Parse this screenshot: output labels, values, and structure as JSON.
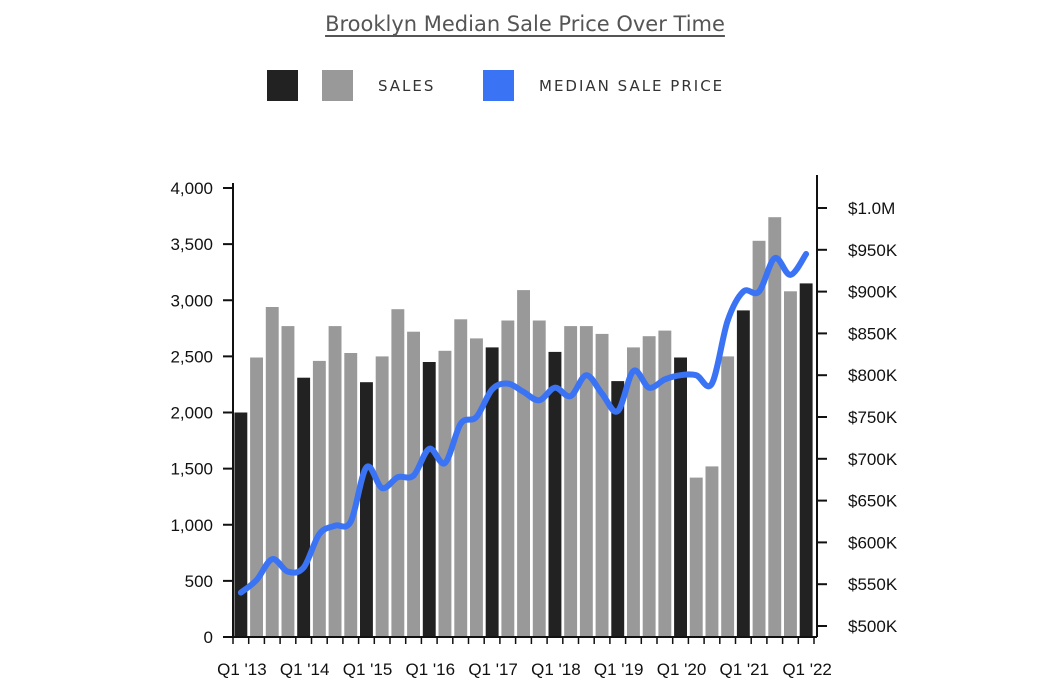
{
  "chart_data": {
    "type": "bar",
    "title": "Brooklyn Median Sale Price Over Time",
    "legend": {
      "placement": "top",
      "sales_label": "SALES",
      "price_label": "MEDIAN SALE PRICE"
    },
    "colors": {
      "q1_bar": "#222222",
      "other_bar": "#999999",
      "price_line": "#3b73f5",
      "axis": "#111111"
    },
    "left_axis": {
      "ylim": [
        0,
        4000
      ],
      "ticks": [
        {
          "value": 0,
          "label": "0"
        },
        {
          "value": 500,
          "label": "500"
        },
        {
          "value": 1000,
          "label": "1,000"
        },
        {
          "value": 1500,
          "label": "1,500"
        },
        {
          "value": 2000,
          "label": "2,000"
        },
        {
          "value": 2500,
          "label": "2,500"
        },
        {
          "value": 3000,
          "label": "3,000"
        },
        {
          "value": 3500,
          "label": "3,500"
        },
        {
          "value": 4000,
          "label": "4,000"
        }
      ]
    },
    "right_axis": {
      "ylim": [
        490000,
        1010000
      ],
      "ticks": [
        {
          "value": 500000,
          "label": "$500K"
        },
        {
          "value": 550000,
          "label": "$550K"
        },
        {
          "value": 600000,
          "label": "$600K"
        },
        {
          "value": 650000,
          "label": "$650K"
        },
        {
          "value": 700000,
          "label": "$700K"
        },
        {
          "value": 750000,
          "label": "$750K"
        },
        {
          "value": 800000,
          "label": "$800K"
        },
        {
          "value": 850000,
          "label": "$850K"
        },
        {
          "value": 900000,
          "label": "$900K"
        },
        {
          "value": 950000,
          "label": "$950K"
        },
        {
          "value": 1000000,
          "label": "$1.0M"
        }
      ]
    },
    "x_ticks": [
      {
        "index": 0,
        "label": "Q1 '13"
      },
      {
        "index": 4,
        "label": "Q1 '14"
      },
      {
        "index": 8,
        "label": "Q1 '15"
      },
      {
        "index": 12,
        "label": "Q1 '16"
      },
      {
        "index": 16,
        "label": "Q1 '17"
      },
      {
        "index": 20,
        "label": "Q1 '18"
      },
      {
        "index": 24,
        "label": "Q1 '19"
      },
      {
        "index": 28,
        "label": "Q1 '20"
      },
      {
        "index": 32,
        "label": "Q1 '21"
      },
      {
        "index": 36,
        "label": "Q1 '22"
      }
    ],
    "categories": [
      "Q1 2013",
      "Q2 2013",
      "Q3 2013",
      "Q4 2013",
      "Q1 2014",
      "Q2 2014",
      "Q3 2014",
      "Q4 2014",
      "Q1 2015",
      "Q2 2015",
      "Q3 2015",
      "Q4 2015",
      "Q1 2016",
      "Q2 2016",
      "Q3 2016",
      "Q4 2016",
      "Q1 2017",
      "Q2 2017",
      "Q3 2017",
      "Q4 2017",
      "Q1 2018",
      "Q2 2018",
      "Q3 2018",
      "Q4 2018",
      "Q1 2019",
      "Q2 2019",
      "Q3 2019",
      "Q4 2019",
      "Q1 2020",
      "Q2 2020",
      "Q3 2020",
      "Q4 2020",
      "Q1 2021",
      "Q2 2021",
      "Q3 2021",
      "Q4 2021",
      "Q1 2022"
    ],
    "series": [
      {
        "name": "SALES",
        "axis": "left",
        "values": [
          2000,
          2490,
          2940,
          2770,
          2310,
          2460,
          2770,
          2530,
          2270,
          2500,
          2920,
          2720,
          2450,
          2550,
          2830,
          2660,
          2580,
          2820,
          3090,
          2820,
          2540,
          2770,
          2770,
          2700,
          2280,
          2580,
          2680,
          2730,
          2490,
          1420,
          1520,
          2500,
          2910,
          3530,
          3740,
          3080,
          3150
        ]
      },
      {
        "name": "MEDIAN SALE PRICE",
        "axis": "right",
        "values": [
          540000,
          555000,
          580000,
          565000,
          570000,
          610000,
          620000,
          625000,
          690000,
          665000,
          678000,
          680000,
          712000,
          695000,
          742000,
          750000,
          783000,
          790000,
          780000,
          770000,
          785000,
          775000,
          800000,
          778000,
          757000,
          805000,
          785000,
          795000,
          800000,
          800000,
          790000,
          865000,
          900000,
          900000,
          940000,
          920000,
          945000
        ]
      }
    ]
  }
}
